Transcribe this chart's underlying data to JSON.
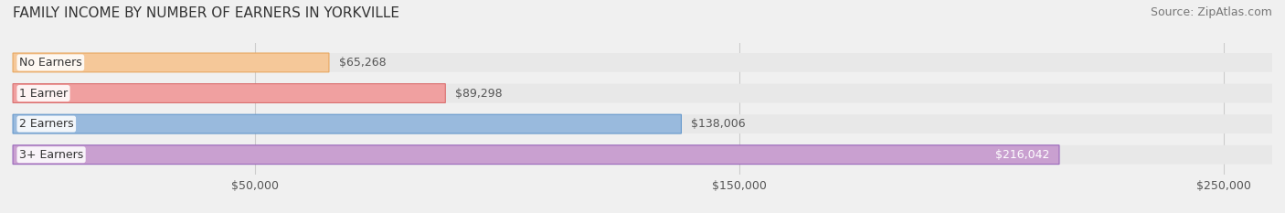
{
  "title": "FAMILY INCOME BY NUMBER OF EARNERS IN YORKVILLE",
  "source": "Source: ZipAtlas.com",
  "categories": [
    "No Earners",
    "1 Earner",
    "2 Earners",
    "3+ Earners"
  ],
  "values": [
    65268,
    89298,
    138006,
    216042
  ],
  "labels": [
    "$65,268",
    "$89,298",
    "$138,006",
    "$216,042"
  ],
  "bar_colors": [
    "#f5c899",
    "#f0a0a0",
    "#99badd",
    "#c9a0d0"
  ],
  "bar_edge_colors": [
    "#e8a860",
    "#d97070",
    "#6699cc",
    "#9966bb"
  ],
  "label_colors": [
    "#555555",
    "#555555",
    "#555555",
    "#ffffff"
  ],
  "xmin": 0,
  "xmax": 260000,
  "xtick_values": [
    50000,
    150000,
    250000
  ],
  "xtick_labels": [
    "$50,000",
    "$150,000",
    "$250,000"
  ],
  "background_color": "#f0f0f0",
  "bar_bg_color": "#e8e8e8",
  "title_fontsize": 11,
  "source_fontsize": 9,
  "label_fontsize": 9,
  "category_fontsize": 9,
  "tick_fontsize": 9,
  "bar_height": 0.62
}
